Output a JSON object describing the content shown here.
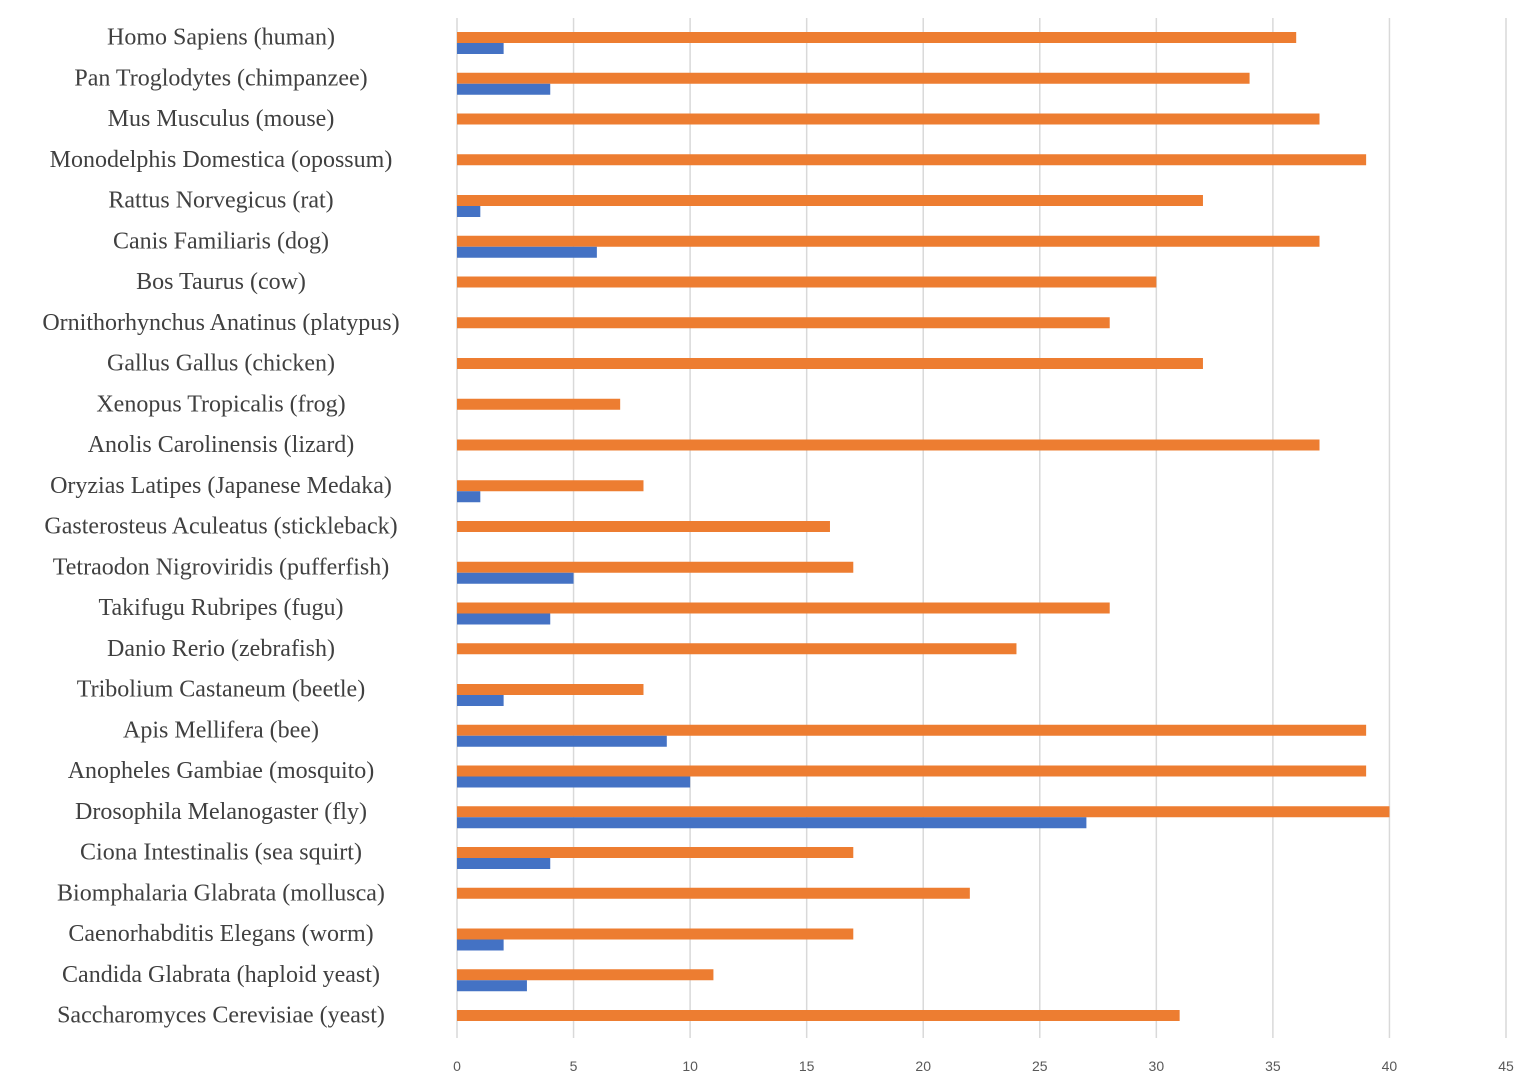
{
  "chart_data": {
    "type": "bar",
    "orientation": "horizontal",
    "categories": [
      "Homo Sapiens (human)",
      "Pan Troglodytes (chimpanzee)",
      "Mus Musculus (mouse)",
      "Monodelphis Domestica (opossum)",
      "Rattus Norvegicus (rat)",
      "Canis Familiaris (dog)",
      "Bos Taurus (cow)",
      "Ornithorhynchus Anatinus (platypus)",
      "Gallus Gallus (chicken)",
      "Xenopus Tropicalis (frog)",
      "Anolis Carolinensis (lizard)",
      "Oryzias Latipes (Japanese Medaka)",
      "Gasterosteus Aculeatus (stickleback)",
      "Tetraodon Nigroviridis (pufferfish)",
      "Takifugu Rubripes (fugu)",
      "Danio Rerio (zebrafish)",
      "Tribolium Castaneum (beetle)",
      "Apis Mellifera (bee)",
      "Anopheles Gambiae (mosquito)",
      "Drosophila Melanogaster (fly)",
      "Ciona Intestinalis (sea squirt)",
      "Biomphalaria Glabrata (mollusca)",
      "Caenorhabditis Elegans (worm)",
      "Candida Glabrata (haploid yeast)",
      "Saccharomyces Cerevisiae (yeast)"
    ],
    "series": [
      {
        "color": "#ed7d31",
        "values": [
          36,
          34,
          37,
          39,
          32,
          37,
          30,
          28,
          32,
          7,
          37,
          8,
          16,
          17,
          28,
          24,
          8,
          39,
          39,
          40,
          17,
          22,
          17,
          11,
          31
        ]
      },
      {
        "color": "#4472c4",
        "values": [
          2,
          4,
          0,
          0,
          1,
          6,
          0,
          0,
          0,
          0,
          0,
          1,
          0,
          5,
          4,
          0,
          2,
          9,
          10,
          27,
          4,
          0,
          2,
          3,
          0
        ]
      }
    ],
    "xlim": [
      0,
      45
    ],
    "xticks": [
      "0",
      "5",
      "10",
      "15",
      "20",
      "25",
      "30",
      "35",
      "40",
      "45"
    ],
    "grid": true,
    "legend": "none"
  }
}
